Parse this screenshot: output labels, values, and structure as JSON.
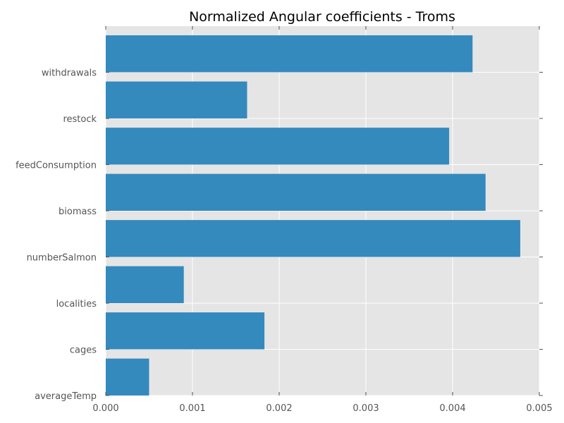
{
  "chart_data": {
    "type": "bar",
    "orientation": "horizontal",
    "title": "Normalized Angular coefficients - Troms",
    "xlabel": "",
    "ylabel": "",
    "xlim": [
      0,
      0.005
    ],
    "x_ticks": [
      "0.000",
      "0.001",
      "0.002",
      "0.003",
      "0.004",
      "0.005"
    ],
    "categories": [
      "averageTemp",
      "cages",
      "localities",
      "numberSalmon",
      "biomass",
      "feedConsumption",
      "restock",
      "withdrawals"
    ],
    "values": [
      0.0005,
      0.00183,
      0.0009,
      0.00478,
      0.00438,
      0.00396,
      0.00163,
      0.00423
    ],
    "grid": true,
    "colors": {
      "bar": "#348abd",
      "plot_background": "#e5e5e5",
      "grid": "#ffffff",
      "tick_text": "#555555",
      "title_text": "#000000"
    }
  }
}
